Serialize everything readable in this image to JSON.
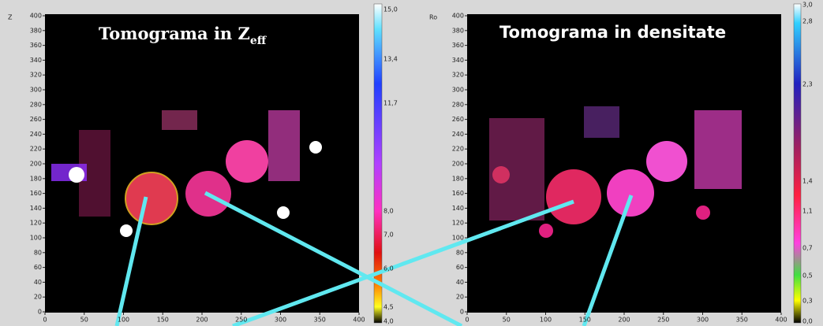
{
  "left_panel": {
    "corner_label": "Z",
    "title": "Tomograma in Z",
    "title_sub": "eff",
    "yticks": [
      "0",
      "20",
      "40",
      "60",
      "80",
      "100",
      "120",
      "140",
      "160",
      "180",
      "200",
      "220",
      "240",
      "260",
      "280",
      "300",
      "320",
      "340",
      "360",
      "380",
      "400"
    ],
    "xticks": [
      "0",
      "50",
      "100",
      "150",
      "200",
      "250",
      "300",
      "350",
      "400"
    ],
    "colorbar_labels": [
      "15,0",
      "13,4",
      "11,7",
      "8,0",
      "7,0",
      "6,0",
      "4,5",
      "4,0"
    ]
  },
  "right_panel": {
    "corner_label": "Ro",
    "title": "Tomograma in densitate",
    "yticks": [
      "0",
      "20",
      "40",
      "60",
      "80",
      "100",
      "120",
      "140",
      "160",
      "180",
      "200",
      "220",
      "240",
      "260",
      "280",
      "300",
      "320",
      "340",
      "360",
      "380",
      "400"
    ],
    "xticks": [
      "0",
      "50",
      "100",
      "150",
      "200",
      "250",
      "300",
      "350",
      "400"
    ],
    "colorbar_labels": [
      "3,0",
      "2,8",
      "2,3",
      "1,4",
      "1,1",
      "0,7",
      "0,5",
      "0,3",
      "0,0"
    ]
  }
}
